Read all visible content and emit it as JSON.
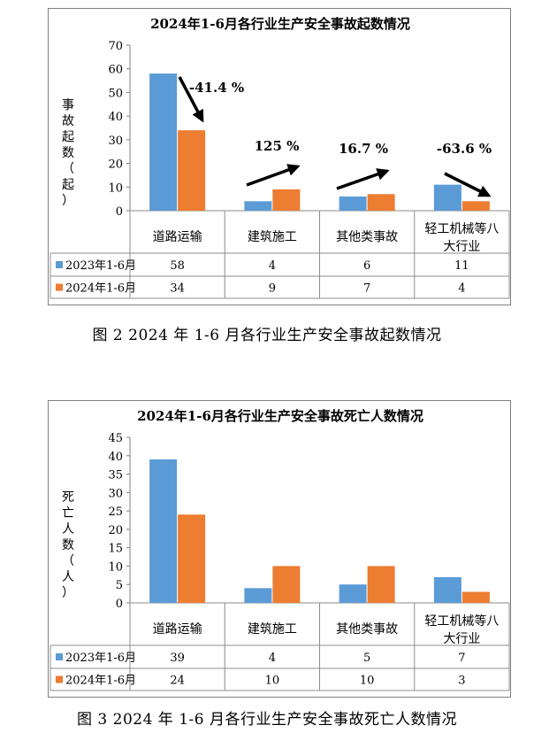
{
  "colors": {
    "series_2023": "#5B9BD5",
    "series_2024": "#ED7D31",
    "axis": "#7F7F7F"
  },
  "chart_data": [
    {
      "type": "bar",
      "title": "2024年1-6月各行业生产安全事故起数情况",
      "ylabel_chars": [
        "事",
        "故",
        "起",
        "数",
        "（",
        "起",
        "）"
      ],
      "ylim": [
        0,
        70
      ],
      "yticks": [
        0,
        10,
        20,
        30,
        40,
        50,
        60,
        70
      ],
      "categories": [
        [
          "道路运输"
        ],
        [
          "建筑施工"
        ],
        [
          "其他类事故"
        ],
        [
          "轻工机械等八",
          "大行业"
        ]
      ],
      "series": [
        {
          "name": "2023年1-6月",
          "values": [
            58,
            4,
            6,
            11
          ]
        },
        {
          "name": "2024年1-6月",
          "values": [
            34,
            9,
            7,
            4
          ]
        }
      ],
      "annotations": [
        "-41.4 %",
        "125 %",
        "16.7 %",
        "-63.6 %"
      ],
      "legend": "data-table",
      "grid": false
    },
    {
      "type": "bar",
      "title": "2024年1-6月各行业生产安全事故死亡人数情况",
      "ylabel_chars": [
        "死",
        "亡",
        "人",
        "数",
        "（",
        "人",
        "）"
      ],
      "ylim": [
        0,
        45
      ],
      "yticks": [
        0,
        5,
        10,
        15,
        20,
        25,
        30,
        35,
        40,
        45
      ],
      "categories": [
        [
          "道路运输"
        ],
        [
          "建筑施工"
        ],
        [
          "其他类事故"
        ],
        [
          "轻工机械等八",
          "大行业"
        ]
      ],
      "series": [
        {
          "name": "2023年1-6月",
          "values": [
            39,
            4,
            5,
            7
          ]
        },
        {
          "name": "2024年1-6月",
          "values": [
            24,
            10,
            10,
            3
          ]
        }
      ],
      "annotations": [],
      "legend": "data-table",
      "grid": false
    }
  ],
  "captions": [
    "图 2 2024 年 1-6 月各行业生产安全事故起数情况",
    "图 3 2024 年 1-6 月各行业生产安全事故死亡人数情况"
  ]
}
